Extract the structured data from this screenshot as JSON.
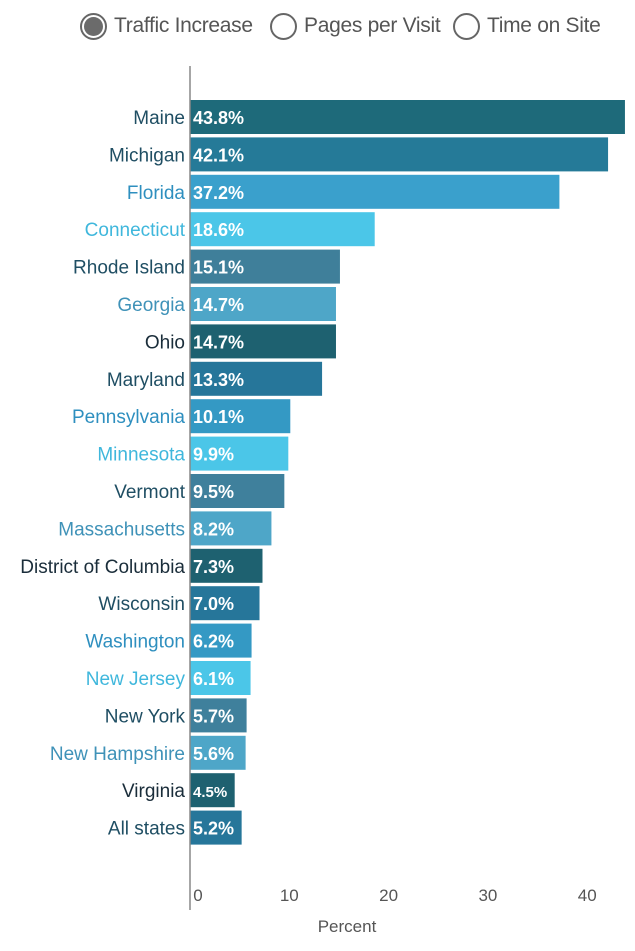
{
  "metric_selector": {
    "options": [
      {
        "label": "Traffic Increase",
        "selected": true
      },
      {
        "label": "Pages per Visit",
        "selected": false
      },
      {
        "label": "Time on Site",
        "selected": false
      }
    ]
  },
  "chart_data": {
    "type": "bar",
    "orientation": "horizontal",
    "title": "",
    "xlabel": "Percent",
    "ylabel": "",
    "xlim": [
      0,
      43
    ],
    "xticks": [
      0,
      10,
      20,
      30,
      40
    ],
    "grid": false,
    "categories": [
      "Maine",
      "Michigan",
      "Florida",
      "Connecticut",
      "Rhode Island",
      "Georgia",
      "Ohio",
      "Maryland",
      "Pennsylvania",
      "Minnesota",
      "Vermont",
      "Massachusetts",
      "District of Columbia",
      "Wisconsin",
      "Washington",
      "New Jersey",
      "New York",
      "New Hampshire",
      "Virginia",
      "All states"
    ],
    "values": [
      43.8,
      42.1,
      37.2,
      18.6,
      15.1,
      14.7,
      14.7,
      13.3,
      10.1,
      9.9,
      9.5,
      8.2,
      7.3,
      7.0,
      6.2,
      6.1,
      5.7,
      5.6,
      4.5,
      5.2
    ],
    "value_labels": [
      "43.8%",
      "42.1%",
      "37.2%",
      "18.6%",
      "15.1%",
      "14.7%",
      "14.7%",
      "13.3%",
      "10.1%",
      "9.9%",
      "9.5%",
      "8.2%",
      "7.3%",
      "7.0%",
      "6.2%",
      "6.1%",
      "5.7%",
      "5.6%",
      "4.5%",
      "5.2%"
    ],
    "bar_colors": [
      "#1e6a7a",
      "#257a98",
      "#3aa0cc",
      "#4bc6e8",
      "#3f7f9a",
      "#4ea6c8",
      "#1e6170",
      "#26769a",
      "#3499c4",
      "#4bc6e8",
      "#3f809c",
      "#4ea6c8",
      "#1e6170",
      "#26769a",
      "#3499c4",
      "#4bc6e8",
      "#3f809c",
      "#4ea6c8",
      "#1e6170",
      "#26769a"
    ],
    "label_colors": [
      "#1f4e63",
      "#1f4e63",
      "#2e8fbf",
      "#3fb7dc",
      "#1f4e63",
      "#3f92b8",
      "#1a2d3a",
      "#1f4e63",
      "#2e8fbf",
      "#3fb7dc",
      "#1f4e63",
      "#3f92b8",
      "#1a2d3a",
      "#1f4e63",
      "#2e8fbf",
      "#3fb7dc",
      "#1f4e63",
      "#3f92b8",
      "#1a2d3a",
      "#1f4e63"
    ],
    "axis_color": "#888888",
    "tick_color": "#555555"
  }
}
